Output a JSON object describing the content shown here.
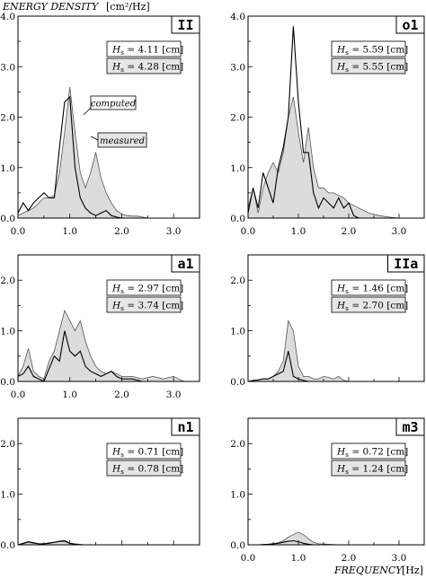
{
  "figure": {
    "ylabel": "ENERGY DENSITY",
    "ylabel_unit": "[cm²/Hz]",
    "xlabel": "FREQUENCY",
    "xlabel_unit": "[Hz]",
    "annotation_computed": "computed",
    "annotation_measured": "measured",
    "colors": {
      "measured_fill": "#dcdcdc",
      "line": "#000000",
      "box_fill": "#e6e6e6"
    }
  },
  "chart_data": [
    {
      "type": "area",
      "tag": "II",
      "hs_measured": "H_s = 4.11 [cm]",
      "hs_computed": "H_s = 4.28 [cm]",
      "xlim": [
        0,
        3.5
      ],
      "ylim": [
        0,
        4.0
      ],
      "xticks": [
        "0.0",
        "1.0",
        "2.0",
        "3.0"
      ],
      "yticks": [
        "0.0",
        "1.0",
        "2.0",
        "3.0",
        "4.0"
      ],
      "series": [
        {
          "name": "measured",
          "style": "filled",
          "x": [
            0.0,
            0.1,
            0.2,
            0.3,
            0.4,
            0.5,
            0.6,
            0.7,
            0.8,
            0.9,
            1.0,
            1.1,
            1.2,
            1.3,
            1.4,
            1.5,
            1.6,
            1.7,
            1.8,
            1.9,
            2.0,
            2.1,
            2.2,
            2.3,
            2.4,
            2.5
          ],
          "y": [
            0.05,
            0.1,
            0.15,
            0.2,
            0.3,
            0.4,
            0.4,
            0.45,
            0.9,
            1.7,
            2.6,
            1.7,
            0.9,
            0.6,
            0.9,
            1.3,
            0.8,
            0.5,
            0.3,
            0.15,
            0.08,
            0.05,
            0.04,
            0.04,
            0.02,
            0.0
          ]
        },
        {
          "name": "computed",
          "style": "line",
          "x": [
            0.0,
            0.1,
            0.2,
            0.3,
            0.4,
            0.5,
            0.6,
            0.7,
            0.8,
            0.9,
            1.0,
            1.1,
            1.2,
            1.3,
            1.4,
            1.5,
            1.6,
            1.7,
            1.8,
            1.9,
            2.0,
            2.1
          ],
          "y": [
            0.1,
            0.3,
            0.15,
            0.3,
            0.4,
            0.5,
            0.4,
            0.4,
            1.4,
            2.3,
            2.4,
            1.0,
            0.4,
            0.2,
            0.1,
            0.05,
            0.1,
            0.15,
            0.05,
            0.02,
            0.0,
            0.0
          ]
        }
      ]
    },
    {
      "type": "area",
      "tag": "o1",
      "hs_measured": "H_s = 5.59 [cm]",
      "hs_computed": "H_s = 5.55 [cm]",
      "xlim": [
        0,
        3.5
      ],
      "ylim": [
        0,
        4.0
      ],
      "xticks": [
        "0.0",
        "1.0",
        "2.0",
        "3.0"
      ],
      "yticks": [
        "0.0",
        "1.0",
        "2.0",
        "3.0",
        "4.0"
      ],
      "series": [
        {
          "name": "measured",
          "style": "filled",
          "x": [
            0.0,
            0.1,
            0.2,
            0.3,
            0.4,
            0.5,
            0.6,
            0.7,
            0.8,
            0.9,
            1.0,
            1.1,
            1.2,
            1.3,
            1.4,
            1.5,
            1.6,
            1.7,
            1.8,
            1.9,
            2.0,
            2.2,
            2.4,
            2.6,
            2.8,
            3.0
          ],
          "y": [
            0.2,
            0.6,
            0.1,
            0.6,
            0.9,
            1.1,
            0.9,
            1.3,
            2.0,
            2.4,
            1.7,
            1.1,
            1.8,
            1.0,
            0.6,
            0.6,
            0.5,
            0.5,
            0.45,
            0.4,
            0.3,
            0.2,
            0.1,
            0.05,
            0.02,
            0.0
          ]
        },
        {
          "name": "computed",
          "style": "line",
          "x": [
            0.0,
            0.1,
            0.2,
            0.3,
            0.4,
            0.5,
            0.6,
            0.7,
            0.8,
            0.9,
            1.0,
            1.1,
            1.2,
            1.3,
            1.4,
            1.5,
            1.6,
            1.7,
            1.8,
            1.9,
            2.0,
            2.1,
            2.2
          ],
          "y": [
            0.1,
            0.6,
            0.2,
            0.9,
            0.6,
            0.3,
            1.0,
            1.4,
            2.0,
            3.8,
            2.3,
            1.3,
            1.3,
            0.5,
            0.2,
            0.4,
            0.3,
            0.2,
            0.4,
            0.2,
            0.3,
            0.05,
            0.0
          ]
        }
      ]
    },
    {
      "type": "area",
      "tag": "a1",
      "hs_measured": "H_s = 2.97 [cm]",
      "hs_computed": "H_s = 3.74 [cm]",
      "xlim": [
        0,
        3.5
      ],
      "ylim": [
        0,
        2.5
      ],
      "xticks": [
        "0.0",
        "1.0",
        "2.0",
        "3.0"
      ],
      "yticks": [
        "0.0",
        "1.0",
        "2.0"
      ],
      "series": [
        {
          "name": "measured",
          "style": "filled",
          "x": [
            0.0,
            0.1,
            0.2,
            0.3,
            0.4,
            0.5,
            0.6,
            0.7,
            0.8,
            0.9,
            1.0,
            1.1,
            1.2,
            1.3,
            1.4,
            1.5,
            1.6,
            1.7,
            1.8,
            1.9,
            2.0,
            2.2,
            2.4,
            2.6,
            2.8,
            3.0,
            3.1,
            3.2
          ],
          "y": [
            0.1,
            0.3,
            0.65,
            0.2,
            0.1,
            0.05,
            0.4,
            0.6,
            1.0,
            1.4,
            1.2,
            1.0,
            1.2,
            0.8,
            0.5,
            0.3,
            0.2,
            0.15,
            0.2,
            0.15,
            0.1,
            0.1,
            0.05,
            0.1,
            0.05,
            0.1,
            0.05,
            0.0
          ]
        },
        {
          "name": "computed",
          "style": "line",
          "x": [
            0.0,
            0.1,
            0.2,
            0.3,
            0.4,
            0.5,
            0.6,
            0.7,
            0.8,
            0.9,
            1.0,
            1.1,
            1.2,
            1.3,
            1.4,
            1.5,
            1.6,
            1.7,
            1.8,
            1.9,
            2.0,
            2.2,
            2.4
          ],
          "y": [
            0.1,
            0.15,
            0.3,
            0.1,
            0.05,
            0.0,
            0.25,
            0.5,
            0.4,
            1.0,
            0.6,
            0.5,
            0.6,
            0.3,
            0.2,
            0.15,
            0.1,
            0.15,
            0.2,
            0.1,
            0.05,
            0.05,
            0.0
          ]
        }
      ]
    },
    {
      "type": "area",
      "tag": "IIa",
      "hs_measured": "H_s = 1.46 [cm]",
      "hs_computed": "H_s = 2.70 [cm]",
      "xlim": [
        0,
        3.5
      ],
      "ylim": [
        0,
        2.5
      ],
      "xticks": [],
      "yticks": [
        "0.0",
        "1.0",
        "2.0"
      ],
      "series": [
        {
          "name": "measured",
          "style": "filled",
          "x": [
            0.0,
            0.1,
            0.2,
            0.3,
            0.4,
            0.5,
            0.6,
            0.7,
            0.8,
            0.9,
            1.0,
            1.1,
            1.2,
            1.3,
            1.4,
            1.5,
            1.6,
            1.7,
            1.8,
            1.9,
            2.0,
            2.2,
            2.4
          ],
          "y": [
            0.0,
            0.02,
            0.03,
            0.05,
            0.05,
            0.1,
            0.2,
            0.4,
            1.2,
            1.0,
            0.3,
            0.1,
            0.1,
            0.05,
            0.05,
            0.1,
            0.08,
            0.05,
            0.1,
            0.02,
            0.0,
            0.0,
            0.0
          ]
        },
        {
          "name": "computed",
          "style": "line",
          "x": [
            0.0,
            0.1,
            0.2,
            0.3,
            0.4,
            0.5,
            0.6,
            0.7,
            0.8,
            0.9,
            1.0,
            1.1,
            1.2,
            1.3
          ],
          "y": [
            0.0,
            0.02,
            0.03,
            0.05,
            0.05,
            0.1,
            0.15,
            0.2,
            0.6,
            0.1,
            0.05,
            0.02,
            0.0,
            0.0
          ]
        }
      ]
    },
    {
      "type": "area",
      "tag": "n1",
      "hs_measured": "H_s = 0.71 [cm]",
      "hs_computed": "H_s = 0.78 [cm]",
      "xlim": [
        0,
        3.5
      ],
      "ylim": [
        0,
        2.5
      ],
      "xticks": [],
      "yticks": [
        "0.0",
        "1.0",
        "2.0"
      ],
      "series": [
        {
          "name": "measured",
          "style": "filled",
          "x": [
            0.0,
            0.1,
            0.2,
            0.3,
            0.4,
            0.5,
            0.6,
            0.7,
            0.8,
            0.9,
            1.0,
            1.1,
            1.2,
            1.3
          ],
          "y": [
            0.0,
            0.02,
            0.05,
            0.03,
            0.02,
            0.02,
            0.04,
            0.05,
            0.06,
            0.06,
            0.03,
            0.02,
            0.01,
            0.0
          ]
        },
        {
          "name": "computed",
          "style": "line",
          "x": [
            0.0,
            0.1,
            0.2,
            0.3,
            0.4,
            0.5,
            0.6,
            0.7,
            0.8,
            0.9,
            1.0,
            1.1,
            1.2,
            1.3
          ],
          "y": [
            0.0,
            0.03,
            0.06,
            0.04,
            0.02,
            0.02,
            0.03,
            0.05,
            0.07,
            0.08,
            0.03,
            0.01,
            0.0,
            0.0
          ]
        }
      ]
    },
    {
      "type": "area",
      "tag": "m3",
      "hs_measured": "H_s = 0.72 [cm]",
      "hs_computed": "H_s = 1.24 [cm]",
      "xlim": [
        0,
        3.5
      ],
      "ylim": [
        0,
        2.5
      ],
      "xticks": [
        "0.0",
        "1.0",
        "2.0",
        "3.0"
      ],
      "yticks": [
        "0.0",
        "1.0",
        "2.0"
      ],
      "series": [
        {
          "name": "measured",
          "style": "filled",
          "x": [
            0.0,
            0.2,
            0.4,
            0.5,
            0.6,
            0.7,
            0.8,
            0.9,
            1.0,
            1.1,
            1.2,
            1.3,
            1.4,
            1.6,
            1.8
          ],
          "y": [
            0.0,
            0.0,
            0.01,
            0.02,
            0.04,
            0.08,
            0.15,
            0.2,
            0.25,
            0.2,
            0.12,
            0.05,
            0.02,
            0.01,
            0.0
          ]
        },
        {
          "name": "computed",
          "style": "line",
          "x": [
            0.0,
            0.2,
            0.4,
            0.5,
            0.6,
            0.7,
            0.8,
            0.9,
            1.0,
            1.1,
            1.2,
            1.3,
            1.4
          ],
          "y": [
            0.0,
            0.0,
            0.01,
            0.02,
            0.03,
            0.05,
            0.07,
            0.08,
            0.06,
            0.03,
            0.01,
            0.0,
            0.0
          ]
        }
      ]
    }
  ]
}
